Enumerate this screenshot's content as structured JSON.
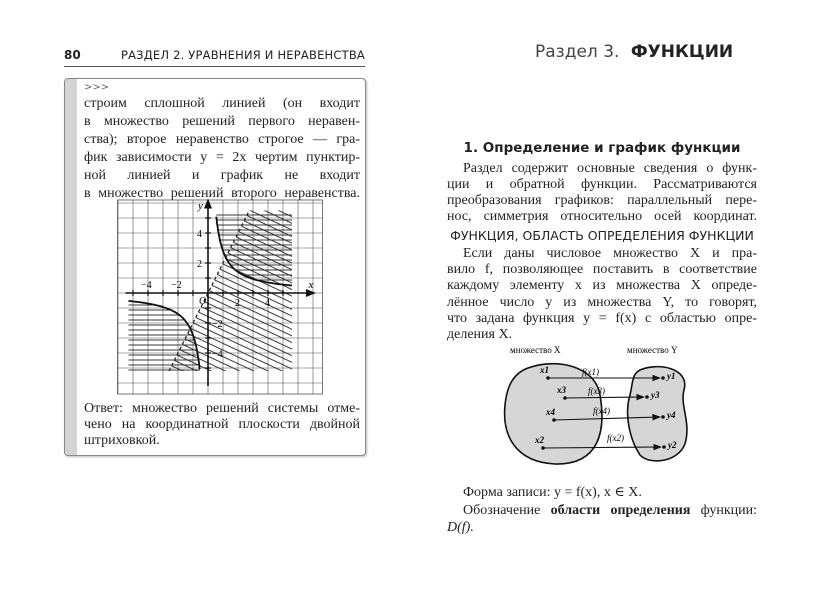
{
  "left_page": {
    "page_number": "80",
    "running_header": "РАЗДЕЛ 2. УРАВНЕНИЯ И НЕРАВЕНСТВА",
    "box": {
      "continuation_mark": ">>>",
      "lines": [
        "строим сплошной линией (он входит",
        "в множество решений первого нера­вен-",
        "ства); второе неравенство строгое — гра-",
        "фик зависимости  y = 2x  чертим пунктир-",
        "ной линией и график не входит",
        "в множество решений второго неравенства."
      ],
      "graph": {
        "x_axis_label": "x",
        "y_axis_label": "y",
        "origin_label": "O",
        "x_tick_labels": [
          "−4",
          "−2",
          "2",
          "4"
        ],
        "y_tick_labels": [
          "4",
          "2",
          "−2",
          "−4"
        ]
      },
      "answer_lines": [
        "Ответ: множество решений системы отме-",
        "чено на координатной плоскости двойной",
        "штриховкой."
      ]
    }
  },
  "right_page": {
    "header_prefix": "Раздел 3.",
    "header_title": "ФУНКЦИИ",
    "section_title": "1. Определение и график функции",
    "intro_lines": [
      "Раздел содержит основные сведения о функ-",
      "ции и обратной функции. Рассматриваются",
      "преобразования графиков: параллельный пере-",
      "нос, симметрия относительно осей координат."
    ],
    "subsection_title": "ФУНКЦИЯ, ОБЛАСТЬ ОПРЕДЕЛЕНИЯ ФУНКЦИИ",
    "definition_lines": [
      "Если даны числовое множество X и пра-",
      "вило f, позволяющее поставить в соответствие",
      "каждому элементу x из множества X опреде-",
      "лённое число y из множества Y, то говорят,",
      "что задана функция y = f(x) с областью опре-",
      "деления X."
    ],
    "diagram": {
      "set_x_label": "множество X",
      "set_y_label": "множество Y",
      "x_points": [
        "x1",
        "x3",
        "x4",
        "x2"
      ],
      "y_points": [
        "y1",
        "y3",
        "y4",
        "y2"
      ],
      "arrow_labels": [
        "f(x1)",
        "f(x3)",
        "f(x4)",
        "f(x2)"
      ]
    },
    "notation_form": "Форма записи:  y = f(x), x ∈ X.",
    "domain_line1_a": "Обозначение",
    "domain_line1_b": "области определения",
    "domain_line1_c": "функции:",
    "domain_line2": "D(f)."
  }
}
